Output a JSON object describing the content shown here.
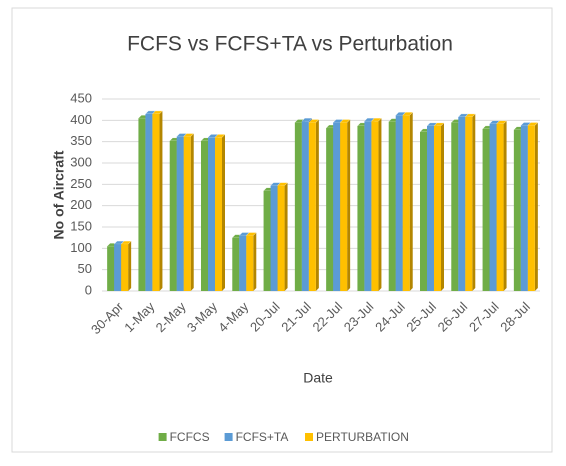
{
  "chart_data": {
    "type": "bar",
    "title": "FCFS vs FCFS+TA vs Perturbation",
    "x_label": "Date",
    "y_label": "No of Aircraft",
    "categories": [
      "30-Apr",
      "1-May",
      "2-May",
      "3-May",
      "4-May",
      "20-Jul",
      "21-Jul",
      "22-Jul",
      "23-Jul",
      "24-Jul",
      "25-Jul",
      "26-Jul",
      "27-Jul",
      "28-Jul"
    ],
    "series": [
      {
        "name": "FCFCS",
        "color": "#70ad47",
        "values": [
          105,
          405,
          352,
          352,
          125,
          235,
          395,
          382,
          387,
          397,
          373,
          395,
          380,
          378
        ]
      },
      {
        "name": "FCFS+TA",
        "color": "#5b9bd5",
        "values": [
          110,
          415,
          362,
          360,
          130,
          247,
          398,
          395,
          398,
          412,
          387,
          408,
          392,
          388
        ]
      },
      {
        "name": "PERTURBATION",
        "color": "#ffc000",
        "values": [
          110,
          415,
          362,
          360,
          130,
          247,
          395,
          395,
          398,
          412,
          387,
          408,
          392,
          388
        ]
      }
    ],
    "ylim": [
      0,
      450
    ],
    "yticks": [
      0,
      50,
      100,
      150,
      200,
      250,
      300,
      350,
      400,
      450
    ],
    "grid": true,
    "legend": "bottom"
  }
}
